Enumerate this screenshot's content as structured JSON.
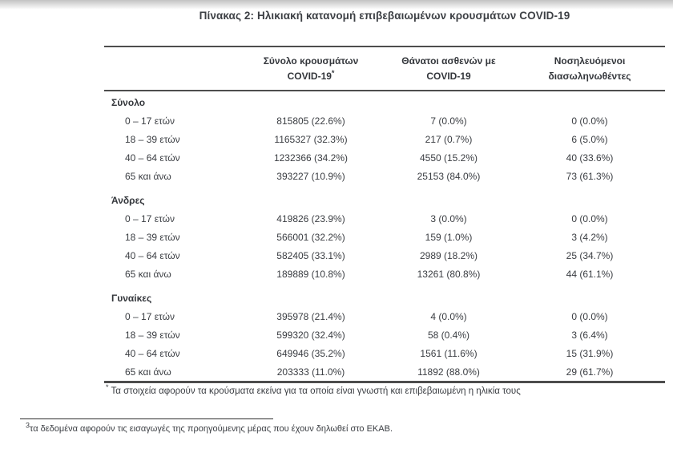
{
  "page": {
    "title": "Πίνακας 2: Ηλικιακή κατανομή επιβεβαιωμένων κρουσμάτων COVID-19"
  },
  "table": {
    "columns": [
      {
        "line1": "Σύνολο κρουσμάτων",
        "line2": "COVID-19",
        "marker": "*"
      },
      {
        "line1": "Θάνατοι ασθενών με",
        "line2": "COVID-19",
        "marker": ""
      },
      {
        "line1": "Νοσηλευόμενοι",
        "line2": "διασωληνωθέντες",
        "marker": ""
      }
    ],
    "sections": [
      {
        "label": "Σύνολο",
        "rows": [
          {
            "age": "0 – 17 ετών",
            "cases": "815805 (22.6%)",
            "deaths": "7 (0.0%)",
            "intubated": "0 (0.0%)"
          },
          {
            "age": "18 – 39 ετών",
            "cases": "1165327 (32.3%)",
            "deaths": "217 (0.7%)",
            "intubated": "6 (5.0%)"
          },
          {
            "age": "40 – 64 ετών",
            "cases": "1232366 (34.2%)",
            "deaths": "4550 (15.2%)",
            "intubated": "40 (33.6%)"
          },
          {
            "age": "65 και άνω",
            "cases": "393227 (10.9%)",
            "deaths": "25153 (84.0%)",
            "intubated": "73 (61.3%)"
          }
        ]
      },
      {
        "label": "Άνδρες",
        "rows": [
          {
            "age": "0 – 17 ετών",
            "cases": "419826 (23.9%)",
            "deaths": "3 (0.0%)",
            "intubated": "0 (0.0%)"
          },
          {
            "age": "18 – 39 ετών",
            "cases": "566001 (32.2%)",
            "deaths": "159 (1.0%)",
            "intubated": "3 (4.2%)"
          },
          {
            "age": "40 – 64 ετών",
            "cases": "582405 (33.1%)",
            "deaths": "2989 (18.2%)",
            "intubated": "25 (34.7%)"
          },
          {
            "age": "65 και άνω",
            "cases": "189889 (10.8%)",
            "deaths": "13261 (80.8%)",
            "intubated": "44 (61.1%)"
          }
        ]
      },
      {
        "label": "Γυναίκες",
        "rows": [
          {
            "age": "0 – 17 ετών",
            "cases": "395978 (21.4%)",
            "deaths": "4 (0.0%)",
            "intubated": "0 (0.0%)"
          },
          {
            "age": "18 – 39 ετών",
            "cases": "599320 (32.4%)",
            "deaths": "58 (0.4%)",
            "intubated": "3 (6.4%)"
          },
          {
            "age": "40 – 64 ετών",
            "cases": "649946 (35.2%)",
            "deaths": "1561 (11.6%)",
            "intubated": "15 (31.9%)"
          },
          {
            "age": "65 και άνω",
            "cases": "203333 (11.0%)",
            "deaths": "11892 (88.0%)",
            "intubated": "29 (61.7%)"
          }
        ]
      }
    ]
  },
  "footnotes": {
    "table_marker": "*",
    "table_note": "Τα στοιχεία αφορούν τα κρούσματα εκείνα για τα οποία είναι γνωστή και επιβεβαιωμένη η ηλικία τους",
    "page_marker": "3",
    "page_note": "τα δεδομένα αφορούν τις εισαγωγές της προηγούμενης μέρας που έχουν δηλωθεί στο ΕΚΑΒ."
  },
  "colors": {
    "text": "#3a3d42",
    "border": "#4d4d4d",
    "top_band": "#c2c2c2"
  }
}
